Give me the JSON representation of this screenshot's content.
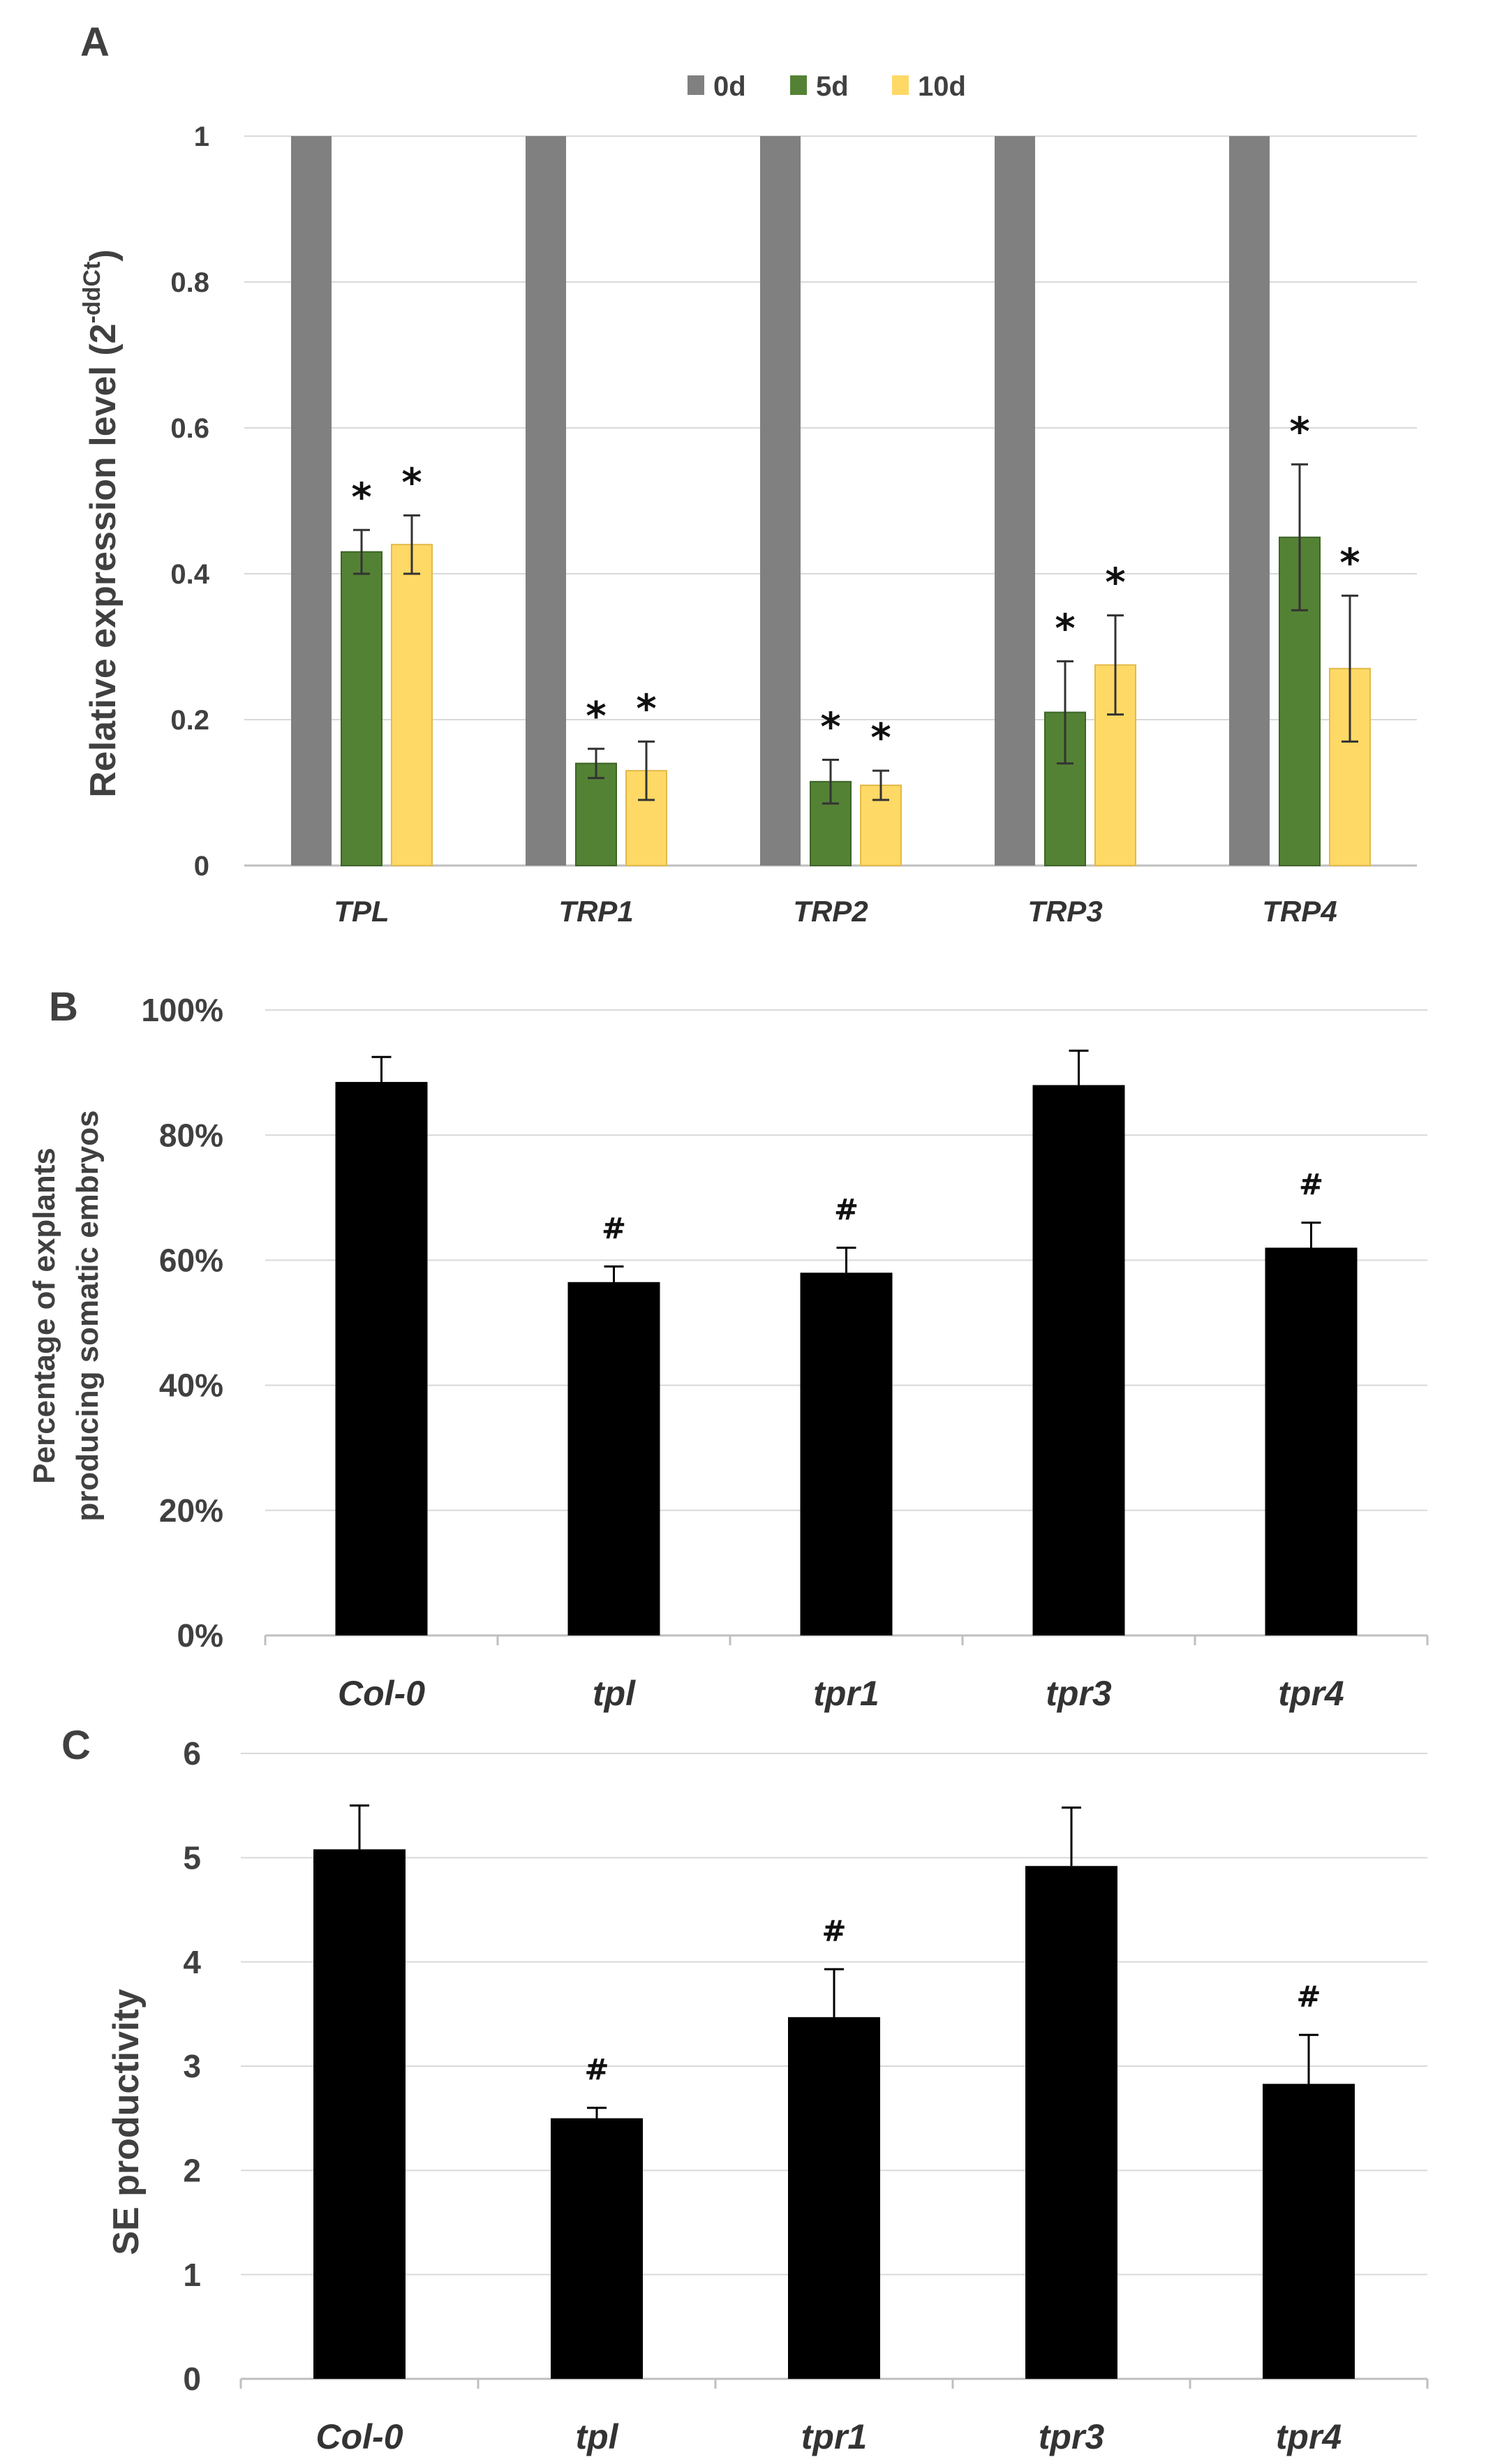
{
  "colors": {
    "gray": "#808080",
    "green": "#548235",
    "yellow": "#FFD966",
    "black": "#000000",
    "grid": "#d9d9d9",
    "axis": "#bfbfbf"
  },
  "chart_data": [
    {
      "panel": "A",
      "type": "bar",
      "title": "",
      "ylabel_main": "Relative expression level (2",
      "ylabel_sup": "-ddCt",
      "ylabel_close": ")",
      "xlabel": "",
      "ylim": [
        0,
        1
      ],
      "ytick_values": [
        0,
        0.2,
        0.4,
        0.6,
        0.8,
        1
      ],
      "ytick_labels": [
        "0",
        "0.2",
        "0.4",
        "0.6",
        "0.8",
        "1"
      ],
      "grid": true,
      "legend_position": "top-center",
      "categories": [
        "TPL",
        "TRP1",
        "TRP2",
        "TRP3",
        "TRP4"
      ],
      "series": [
        {
          "name": "0d",
          "color": "#808080",
          "values": [
            1,
            1,
            1,
            1,
            1
          ],
          "errors": [
            0,
            0,
            0,
            0,
            0
          ],
          "marks": [
            "",
            "",
            "",
            "",
            ""
          ]
        },
        {
          "name": "5d",
          "color": "#548235",
          "values": [
            0.43,
            0.14,
            0.115,
            0.21,
            0.45
          ],
          "errors": [
            0.03,
            0.02,
            0.03,
            0.07,
            0.1
          ],
          "marks": [
            "*",
            "*",
            "*",
            "*",
            "*"
          ]
        },
        {
          "name": "10d",
          "color": "#FFD966",
          "values": [
            0.44,
            0.13,
            0.11,
            0.275,
            0.27
          ],
          "errors": [
            0.04,
            0.04,
            0.02,
            0.068,
            0.1
          ],
          "marks": [
            "*",
            "*",
            "*",
            "*",
            "*"
          ]
        }
      ]
    },
    {
      "panel": "B",
      "type": "bar",
      "title": "",
      "ylabel_line1": "Percentage of explants",
      "ylabel_line2": "producing somatic embryos",
      "xlabel": "",
      "ylim": [
        0,
        100
      ],
      "ytick_values": [
        0,
        20,
        40,
        60,
        80,
        100
      ],
      "ytick_labels": [
        "0%",
        "20%",
        "40%",
        "60%",
        "80%",
        "100%"
      ],
      "grid": true,
      "categories": [
        "Col-0",
        "tpl",
        "tpr1",
        "tpr3",
        "tpr4"
      ],
      "series": [
        {
          "name": "explants",
          "color": "#000000",
          "values": [
            88.5,
            56.5,
            58,
            88,
            62
          ],
          "errors": [
            4,
            2.5,
            4,
            5.5,
            4
          ],
          "marks": [
            "",
            "#",
            "#",
            "",
            "#"
          ]
        }
      ]
    },
    {
      "panel": "C",
      "type": "bar",
      "title": "",
      "ylabel": "SE productivity",
      "xlabel": "",
      "ylim": [
        0,
        6
      ],
      "ytick_values": [
        0,
        1,
        2,
        3,
        4,
        5,
        6
      ],
      "ytick_labels": [
        "0",
        "1",
        "2",
        "3",
        "4",
        "5",
        "6"
      ],
      "grid": true,
      "categories": [
        "Col-0",
        "tpl",
        "tpr1",
        "tpr3",
        "tpr4"
      ],
      "series": [
        {
          "name": "productivity",
          "color": "#000000",
          "values": [
            5.08,
            2.5,
            3.47,
            4.92,
            2.83
          ],
          "errors": [
            0.42,
            0.1,
            0.46,
            0.56,
            0.47
          ],
          "marks": [
            "",
            "#",
            "#",
            "",
            "#"
          ]
        }
      ]
    }
  ]
}
